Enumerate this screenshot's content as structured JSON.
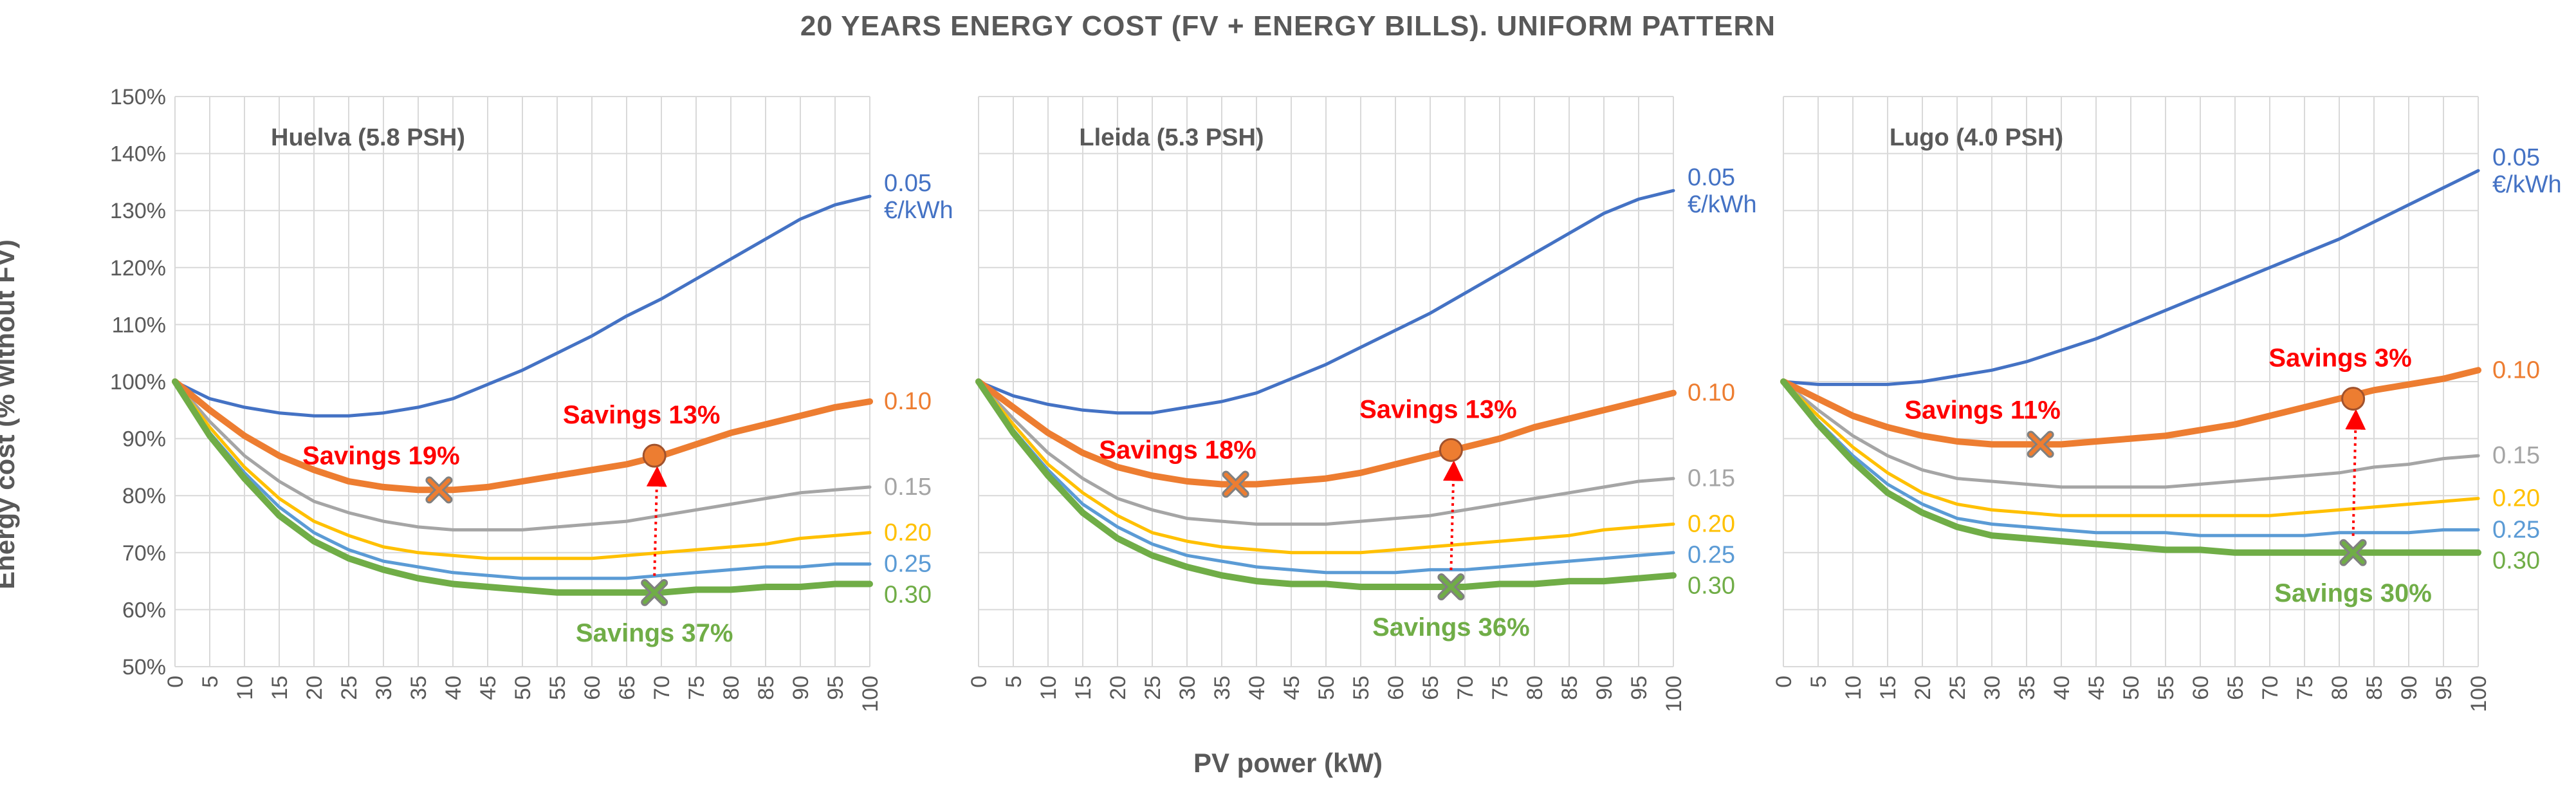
{
  "title": "20 YEARS ENERGY COST (FV + ENERGY BILLS). UNIFORM PATTERN",
  "xlabel": "PV power (kW)",
  "ylabel": "Energy cost (% without FV)",
  "colors": {
    "0.05": "#4472C4",
    "0.10": "#ED7D31",
    "0.15": "#A5A5A5",
    "0.20": "#FFC000",
    "0.25": "#5B9BD5",
    "0.30": "#70AD47",
    "savings": "#FF0000",
    "grid": "#D9D9D9",
    "text": "#595959",
    "marker_orange": "#ED7D31",
    "marker_green": "#70AD47"
  },
  "chart_data": [
    {
      "type": "line",
      "panel": "Huelva (5.8 PSH)",
      "x": [
        0,
        5,
        10,
        15,
        20,
        25,
        30,
        35,
        40,
        45,
        50,
        55,
        60,
        65,
        70,
        75,
        80,
        85,
        90,
        95,
        100
      ],
      "xlabel": "PV power (kW)",
      "ylabel": "Energy cost (% without FV)",
      "xlim": [
        0,
        100
      ],
      "ylim": [
        50,
        150
      ],
      "yticks": [
        "50%",
        "60%",
        "70%",
        "80%",
        "90%",
        "100%",
        "110%",
        "120%",
        "130%",
        "140%",
        "150%"
      ],
      "grid": true,
      "series": [
        {
          "name": "0.05 €/kWh",
          "label_lines": [
            "0.05",
            "€/kWh"
          ],
          "color_key": "0.05",
          "values": [
            100,
            97,
            95.5,
            94.5,
            94,
            94,
            94.5,
            95.5,
            97,
            99.5,
            102,
            105,
            108,
            111.5,
            114.5,
            118,
            121.5,
            125,
            128.5,
            131,
            132.5
          ]
        },
        {
          "name": "0.10",
          "label_lines": [
            "0.10"
          ],
          "color_key": "0.10",
          "values": [
            100,
            95,
            90.5,
            87,
            84.5,
            82.5,
            81.5,
            81,
            81,
            81.5,
            82.5,
            83.5,
            84.5,
            85.5,
            87,
            89,
            91,
            92.5,
            94,
            95.5,
            96.5
          ]
        },
        {
          "name": "0.15",
          "label_lines": [
            "0.15"
          ],
          "color_key": "0.15",
          "values": [
            100,
            93,
            87,
            82.5,
            79,
            77,
            75.5,
            74.5,
            74,
            74,
            74,
            74.5,
            75,
            75.5,
            76.5,
            77.5,
            78.5,
            79.5,
            80.5,
            81,
            81.5
          ]
        },
        {
          "name": "0.20",
          "label_lines": [
            "0.20"
          ],
          "color_key": "0.20",
          "values": [
            100,
            92,
            85,
            79.5,
            75.5,
            73,
            71,
            70,
            69.5,
            69,
            69,
            69,
            69,
            69.5,
            70,
            70.5,
            71,
            71.5,
            72.5,
            73,
            73.5
          ]
        },
        {
          "name": "0.25",
          "label_lines": [
            "0.25"
          ],
          "color_key": "0.25",
          "values": [
            100,
            91,
            84,
            78,
            73.5,
            70.5,
            68.5,
            67.5,
            66.5,
            66,
            65.5,
            65.5,
            65.5,
            65.5,
            66,
            66.5,
            67,
            67.5,
            67.5,
            68,
            68
          ]
        },
        {
          "name": "0.30",
          "label_lines": [
            "0.30"
          ],
          "color_key": "0.30",
          "values": [
            100,
            90.5,
            83,
            76.5,
            72,
            69,
            67,
            65.5,
            64.5,
            64,
            63.5,
            63,
            63,
            63,
            63,
            63.5,
            63.5,
            64,
            64,
            64.5,
            64.5
          ]
        }
      ],
      "annotations": [
        {
          "text": "Savings 19%",
          "x": 38,
          "y": 81,
          "marker": "x",
          "color_key": "marker_orange"
        },
        {
          "text": "Savings 13%",
          "x": 69,
          "y": 87,
          "marker": "o",
          "color_key": "marker_orange"
        },
        {
          "text": "Savings 37%",
          "x": 69,
          "y": 63,
          "marker": "x",
          "color_key": "marker_green"
        }
      ]
    },
    {
      "type": "line",
      "panel": "Lleida (5.3 PSH)",
      "x": [
        0,
        5,
        10,
        15,
        20,
        25,
        30,
        35,
        40,
        45,
        50,
        55,
        60,
        65,
        70,
        75,
        80,
        85,
        90,
        95,
        100
      ],
      "xlabel": "PV power (kW)",
      "xlim": [
        0,
        100
      ],
      "ylim": [
        50,
        150
      ],
      "grid": true,
      "series": [
        {
          "name": "0.05 €/kWh",
          "label_lines": [
            "0.05",
            "€/kWh"
          ],
          "color_key": "0.05",
          "values": [
            100,
            97.5,
            96,
            95,
            94.5,
            94.5,
            95.5,
            96.5,
            98,
            100.5,
            103,
            106,
            109,
            112,
            115.5,
            119,
            122.5,
            126,
            129.5,
            132,
            133.5
          ]
        },
        {
          "name": "0.10",
          "label_lines": [
            "0.10"
          ],
          "color_key": "0.10",
          "values": [
            100,
            95.5,
            91,
            87.5,
            85,
            83.5,
            82.5,
            82,
            82,
            82.5,
            83,
            84,
            85.5,
            87,
            88.5,
            90,
            92,
            93.5,
            95,
            96.5,
            98
          ]
        },
        {
          "name": "0.15",
          "label_lines": [
            "0.15"
          ],
          "color_key": "0.15",
          "values": [
            100,
            93.5,
            87.5,
            83,
            79.5,
            77.5,
            76,
            75.5,
            75,
            75,
            75,
            75.5,
            76,
            76.5,
            77.5,
            78.5,
            79.5,
            80.5,
            81.5,
            82.5,
            83
          ]
        },
        {
          "name": "0.20",
          "label_lines": [
            "0.20"
          ],
          "color_key": "0.20",
          "values": [
            100,
            92.5,
            85.5,
            80.5,
            76.5,
            73.5,
            72,
            71,
            70.5,
            70,
            70,
            70,
            70.5,
            71,
            71.5,
            72,
            72.5,
            73,
            74,
            74.5,
            75
          ]
        },
        {
          "name": "0.25",
          "label_lines": [
            "0.25"
          ],
          "color_key": "0.25",
          "values": [
            100,
            91.5,
            84.5,
            78.5,
            74.5,
            71.5,
            69.5,
            68.5,
            67.5,
            67,
            66.5,
            66.5,
            66.5,
            67,
            67,
            67.5,
            68,
            68.5,
            69,
            69.5,
            70
          ]
        },
        {
          "name": "0.30",
          "label_lines": [
            "0.30"
          ],
          "color_key": "0.30",
          "values": [
            100,
            91,
            83.5,
            77,
            72.5,
            69.5,
            67.5,
            66,
            65,
            64.5,
            64.5,
            64,
            64,
            64,
            64,
            64.5,
            64.5,
            65,
            65,
            65.5,
            66
          ]
        }
      ],
      "annotations": [
        {
          "text": "Savings 18%",
          "x": 37,
          "y": 82,
          "marker": "x",
          "color_key": "marker_orange"
        },
        {
          "text": "Savings 13%",
          "x": 68,
          "y": 88,
          "marker": "o",
          "color_key": "marker_orange"
        },
        {
          "text": "Savings 36%",
          "x": 68,
          "y": 64,
          "marker": "x",
          "color_key": "marker_green"
        }
      ]
    },
    {
      "type": "line",
      "panel": "Lugo (4.0 PSH)",
      "x": [
        0,
        5,
        10,
        15,
        20,
        25,
        30,
        35,
        40,
        45,
        50,
        55,
        60,
        65,
        70,
        75,
        80,
        85,
        90,
        95,
        100
      ],
      "xlabel": "PV power (kW)",
      "xlim": [
        0,
        100
      ],
      "ylim": [
        50,
        150
      ],
      "grid": true,
      "series": [
        {
          "name": "0.05 €/kWh",
          "label_lines": [
            "0.05",
            "€/kWh"
          ],
          "color_key": "0.05",
          "values": [
            100,
            99.5,
            99.5,
            99.5,
            100,
            101,
            102,
            103.5,
            105.5,
            107.5,
            110,
            112.5,
            115,
            117.5,
            120,
            122.5,
            125,
            128,
            131,
            134,
            137
          ]
        },
        {
          "name": "0.10",
          "label_lines": [
            "0.10"
          ],
          "color_key": "0.10",
          "values": [
            100,
            97,
            94,
            92,
            90.5,
            89.5,
            89,
            89,
            89,
            89.5,
            90,
            90.5,
            91.5,
            92.5,
            94,
            95.5,
            97,
            98.5,
            99.5,
            100.5,
            102
          ]
        },
        {
          "name": "0.15",
          "label_lines": [
            "0.15"
          ],
          "color_key": "0.15",
          "values": [
            100,
            95,
            90.5,
            87,
            84.5,
            83,
            82.5,
            82,
            81.5,
            81.5,
            81.5,
            81.5,
            82,
            82.5,
            83,
            83.5,
            84,
            85,
            85.5,
            86.5,
            87
          ]
        },
        {
          "name": "0.20",
          "label_lines": [
            "0.20"
          ],
          "color_key": "0.20",
          "values": [
            100,
            94,
            88.5,
            84,
            80.5,
            78.5,
            77.5,
            77,
            76.5,
            76.5,
            76.5,
            76.5,
            76.5,
            76.5,
            76.5,
            77,
            77.5,
            78,
            78.5,
            79,
            79.5
          ]
        },
        {
          "name": "0.25",
          "label_lines": [
            "0.25"
          ],
          "color_key": "0.25",
          "values": [
            100,
            93,
            87,
            82,
            78.5,
            76,
            75,
            74.5,
            74,
            73.5,
            73.5,
            73.5,
            73,
            73,
            73,
            73,
            73.5,
            73.5,
            73.5,
            74,
            74
          ]
        },
        {
          "name": "0.30",
          "label_lines": [
            "0.30"
          ],
          "color_key": "0.30",
          "values": [
            100,
            92.5,
            86,
            80.5,
            77,
            74.5,
            73,
            72.5,
            72,
            71.5,
            71,
            70.5,
            70.5,
            70,
            70,
            70,
            70,
            70,
            70,
            70,
            70
          ]
        }
      ],
      "annotations": [
        {
          "text": "Savings 11%",
          "x": 37,
          "y": 89,
          "marker": "x",
          "color_key": "marker_orange"
        },
        {
          "text": "Savings 3%",
          "x": 82,
          "y": 97,
          "marker": "o",
          "color_key": "marker_orange"
        },
        {
          "text": "Savings 30%",
          "x": 82,
          "y": 70,
          "marker": "x",
          "color_key": "marker_green"
        }
      ]
    }
  ]
}
